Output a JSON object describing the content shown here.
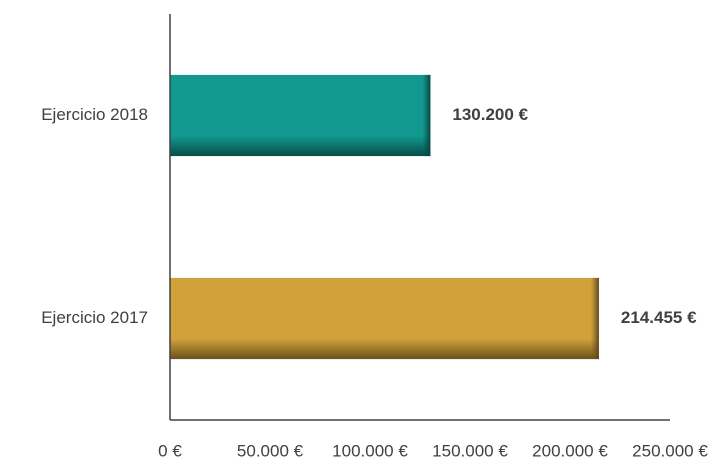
{
  "chart_data": {
    "type": "bar",
    "orientation": "horizontal",
    "categories": [
      "Ejercicio 2018",
      "Ejercicio 2017"
    ],
    "values": [
      130200,
      214455
    ],
    "value_labels": [
      "130.200 €",
      "214.455 €"
    ],
    "colors": [
      "#119990",
      "#d1a13a"
    ],
    "xlim": [
      0,
      250000
    ],
    "xticks": [
      {
        "value": 0,
        "label": "0 €"
      },
      {
        "value": 50000,
        "label": "50.000 €"
      },
      {
        "value": 100000,
        "label": "100.000 €"
      },
      {
        "value": 150000,
        "label": "150.000 €"
      },
      {
        "value": 200000,
        "label": "200.000 €"
      },
      {
        "value": 250000,
        "label": "250.000 €"
      }
    ],
    "grid": false
  }
}
